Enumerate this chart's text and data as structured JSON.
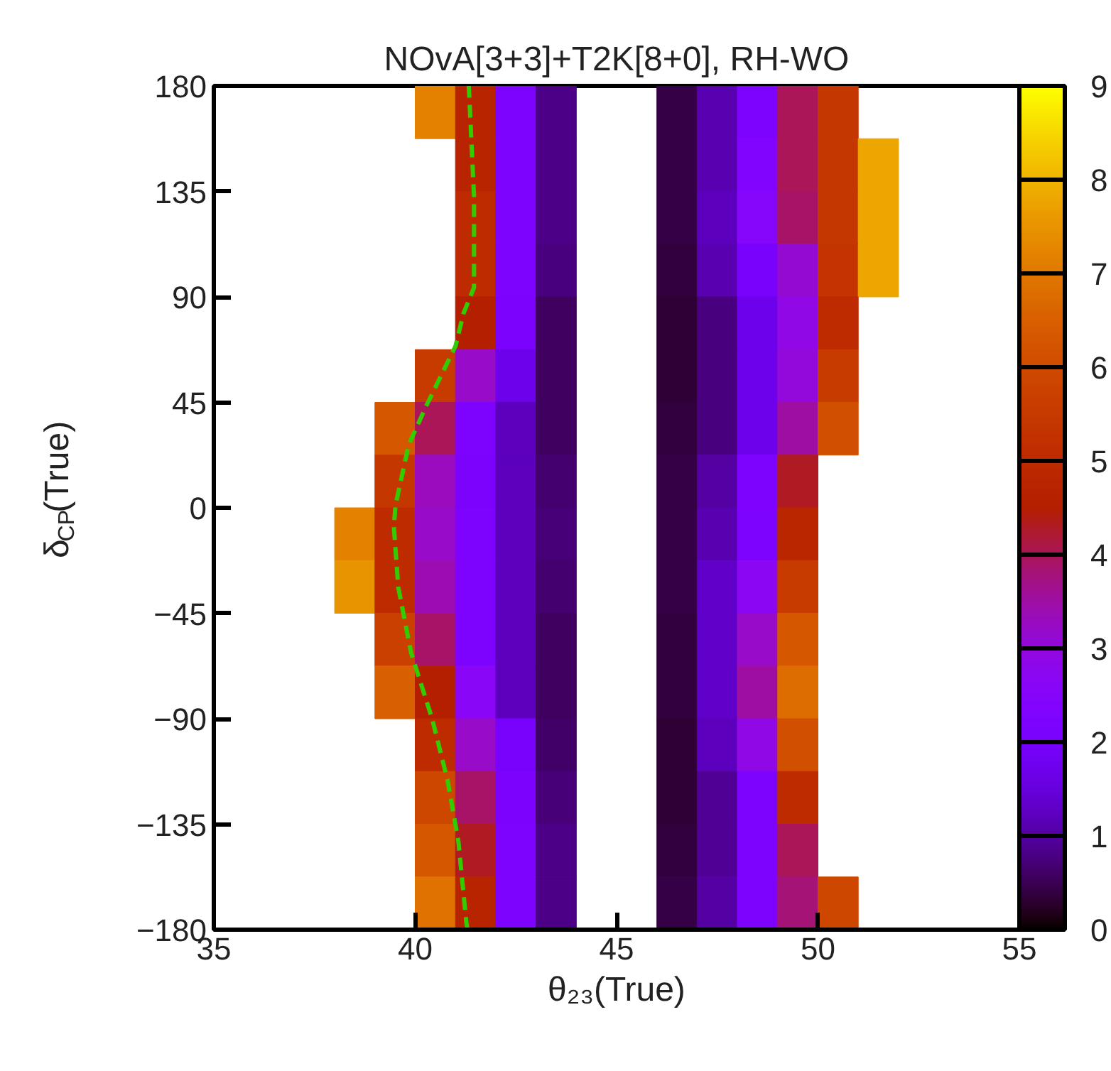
{
  "chart_data": {
    "type": "heatmap",
    "title": "NOvA[3+3]+T2K[8+0], RH-WO",
    "xlabel": "θ₂₃(True)",
    "ylabel": "δ$_{CP}$(True)",
    "x": [
      38.5,
      39.5,
      40.5,
      41.5,
      42.5,
      43.5,
      44.5,
      45.5,
      46.5,
      47.5,
      48.5,
      49.5,
      50.5,
      51.5
    ],
    "y": [
      168.75,
      146.25,
      123.75,
      101.25,
      78.75,
      56.25,
      33.75,
      11.25,
      -11.25,
      -33.75,
      -56.25,
      -78.75,
      -101.25,
      -123.75,
      -146.25,
      -168.75
    ],
    "cells": [
      [
        null,
        null,
        7.2,
        4.7,
        2.2,
        0.8,
        null,
        null,
        0.4,
        1.1,
        2.2,
        4.0,
        5.4,
        null
      ],
      [
        null,
        null,
        null,
        4.7,
        2.2,
        0.8,
        null,
        null,
        0.4,
        1.1,
        2.3,
        4.0,
        5.4,
        7.8
      ],
      [
        null,
        null,
        null,
        5.0,
        2.2,
        0.8,
        null,
        null,
        0.4,
        1.2,
        2.5,
        3.9,
        5.4,
        7.8
      ],
      [
        null,
        null,
        null,
        5.0,
        2.2,
        0.75,
        null,
        null,
        0.35,
        1.1,
        2.0,
        3.1,
        5.3,
        7.8
      ],
      [
        null,
        null,
        null,
        4.5,
        2.1,
        0.55,
        null,
        null,
        0.3,
        0.75,
        1.7,
        2.9,
        5.0,
        null
      ],
      [
        null,
        null,
        5.5,
        3.2,
        1.7,
        0.55,
        null,
        null,
        0.3,
        0.75,
        1.7,
        3.0,
        5.5,
        null
      ],
      [
        null,
        6.3,
        4.0,
        2.2,
        1.2,
        0.55,
        null,
        null,
        0.35,
        0.75,
        1.7,
        3.5,
        6.1,
        null
      ],
      [
        null,
        5.4,
        3.3,
        2.1,
        1.2,
        0.65,
        null,
        null,
        0.4,
        1.0,
        2.2,
        4.3,
        null,
        null
      ],
      [
        7.2,
        5.0,
        3.2,
        2.2,
        1.2,
        0.7,
        null,
        null,
        0.4,
        1.1,
        2.2,
        4.8,
        null,
        null
      ],
      [
        7.5,
        5.0,
        3.4,
        2.2,
        1.2,
        0.65,
        null,
        null,
        0.4,
        1.3,
        2.7,
        5.5,
        null,
        null
      ],
      [
        null,
        5.7,
        3.9,
        2.2,
        1.2,
        0.55,
        null,
        null,
        0.35,
        1.3,
        3.2,
        6.3,
        null,
        null
      ],
      [
        null,
        6.5,
        4.5,
        2.6,
        1.2,
        0.55,
        null,
        null,
        0.35,
        1.3,
        3.5,
        6.8,
        null,
        null
      ],
      [
        null,
        null,
        5.0,
        3.2,
        2.0,
        0.6,
        null,
        null,
        0.3,
        1.2,
        2.9,
        6.1,
        null,
        null
      ],
      [
        null,
        null,
        5.9,
        3.9,
        2.1,
        0.7,
        null,
        null,
        0.3,
        0.9,
        2.2,
        5.0,
        null,
        null
      ],
      [
        null,
        null,
        6.3,
        4.3,
        2.2,
        0.8,
        null,
        null,
        0.35,
        0.9,
        2.2,
        4.0,
        null,
        null
      ],
      [
        null,
        null,
        6.9,
        4.7,
        2.2,
        0.8,
        null,
        null,
        0.4,
        1.0,
        2.2,
        3.8,
        5.9,
        null
      ]
    ],
    "clim": [
      0,
      9
    ],
    "cticks": [
      0,
      1,
      2,
      3,
      4,
      5,
      6,
      7,
      8,
      9
    ],
    "xlim": [
      35,
      55
    ],
    "xticks": [
      35,
      40,
      45,
      50,
      55
    ],
    "ylim": [
      -180,
      180
    ],
    "yticks": [
      -180,
      -135,
      -90,
      -45,
      0,
      45,
      90,
      135,
      180
    ],
    "series": [
      {
        "type": "line",
        "color": "#33cc00",
        "line_style": "dashed",
        "x": [
          41.3,
          41.27,
          41.07,
          40.8,
          40.42,
          39.9,
          39.58,
          39.47,
          39.51,
          39.84,
          40.29,
          41.0,
          41.2,
          41.46,
          41.46,
          41.33
        ],
        "values": [
          -180,
          -177,
          -142,
          -116,
          -90,
          -62,
          -34,
          -8,
          1,
          27,
          44,
          69,
          83,
          94,
          133,
          180
        ]
      }
    ]
  }
}
